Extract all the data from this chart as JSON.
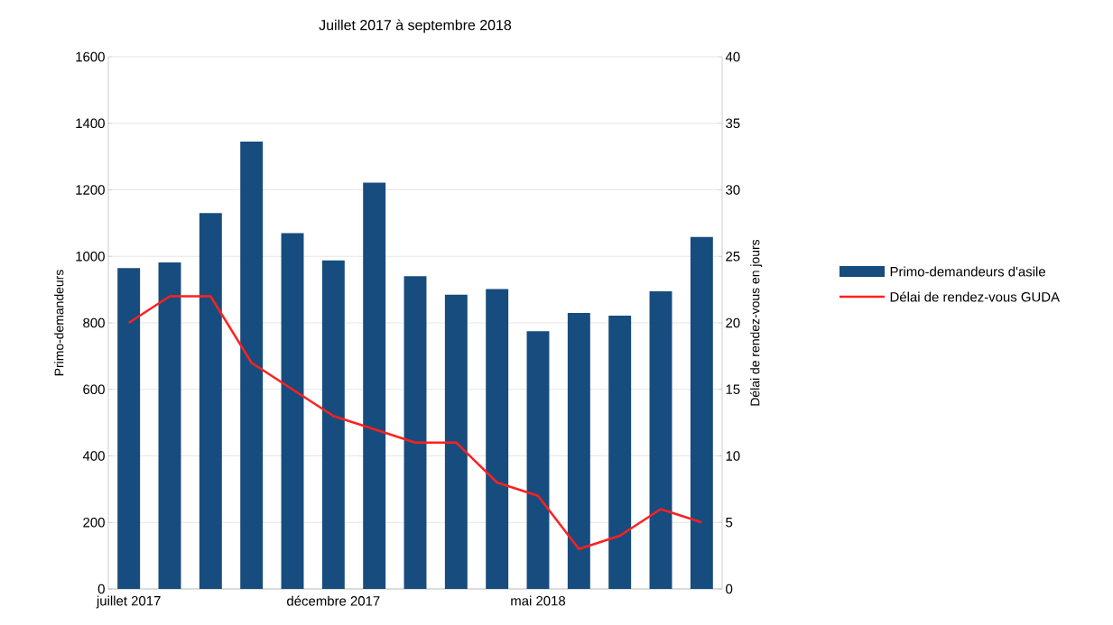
{
  "chart_data": {
    "type": "bar",
    "title": "Juillet 2017 à septembre 2018",
    "ylabel": "Primo-demandeurs",
    "y2label": "Délai de rendez-vous en jours",
    "categories": [
      "juillet 2017",
      null,
      null,
      null,
      null,
      "décembre 2017",
      null,
      null,
      null,
      null,
      "mai 2018",
      null,
      null,
      null,
      null
    ],
    "series": [
      {
        "name": "Primo-demandeurs d'asile",
        "color": "#174c7e",
        "values": [
          965,
          982,
          1130,
          1345,
          1070,
          988,
          1222,
          940,
          885,
          902,
          775,
          830,
          822,
          895,
          1058
        ]
      },
      {
        "name": "Délai de rendez-vous GUDA",
        "type": "line",
        "axis": "y2",
        "color": "#ff2020",
        "values": [
          20,
          22,
          22,
          17,
          15,
          13,
          12,
          11,
          11,
          8,
          7,
          3,
          4,
          6,
          5
        ]
      }
    ],
    "ylim": [
      0,
      1600
    ],
    "yticks": [
      0,
      200,
      400,
      600,
      800,
      1000,
      1200,
      1400,
      1600
    ],
    "y2lim": [
      0,
      40
    ],
    "y2ticks": [
      0,
      5,
      10,
      15,
      20,
      25,
      30,
      35,
      40
    ],
    "grid": "y",
    "legend": "right"
  }
}
